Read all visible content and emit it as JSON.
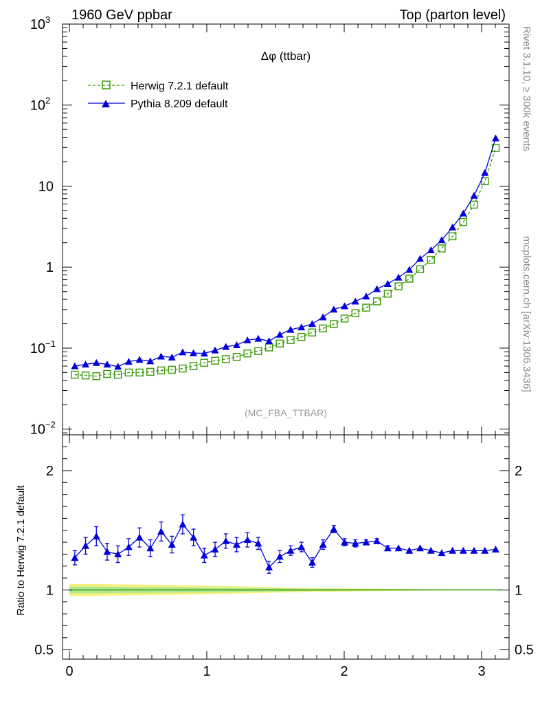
{
  "header": {
    "left": "1960 GeV ppbar",
    "right": "Top (parton level)"
  },
  "side": {
    "rivet": "Rivet 3.1.10, ≥ 300k events",
    "mcplots": "mcplots.cern.ch [arXiv:1306.3436]"
  },
  "chart_data": [
    {
      "type": "line",
      "title": "Δφ (ttbar)",
      "annotation": "(MC_FBA_TTBAR)",
      "yscale": "log",
      "xlim": [
        -0.05,
        3.2
      ],
      "ylim": [
        0.0085,
        1000
      ],
      "ytick_labels": [
        {
          "value": 1000,
          "base": "10",
          "exp": "3"
        },
        {
          "value": 100,
          "base": "10",
          "exp": "2"
        },
        {
          "value": 10,
          "base": "10",
          "exp": ""
        },
        {
          "value": 1,
          "base": "1",
          "exp": ""
        },
        {
          "value": 0.1,
          "base": "10",
          "exp": "−1"
        },
        {
          "value": 0.01,
          "base": "10",
          "exp": "−2"
        }
      ],
      "legend_position": "top-left",
      "x": [
        0.0393,
        0.1178,
        0.1963,
        0.2749,
        0.3534,
        0.432,
        0.5105,
        0.589,
        0.6676,
        0.7461,
        0.8247,
        0.9032,
        0.9817,
        1.0603,
        1.1388,
        1.2174,
        1.2959,
        1.3744,
        1.453,
        1.5315,
        1.6101,
        1.6886,
        1.7671,
        1.8457,
        1.9242,
        2.0028,
        2.0813,
        2.1598,
        2.2384,
        2.3169,
        2.3955,
        2.474,
        2.5525,
        2.6311,
        2.7096,
        2.7882,
        2.8667,
        2.9452,
        3.0238,
        3.1023
      ],
      "series": [
        {
          "name": "Herwig 7.2.1 default",
          "color": "#339900",
          "marker": "open-square",
          "linestyle": "dashed",
          "values": [
            0.047,
            0.046,
            0.045,
            0.048,
            0.047,
            0.05,
            0.05,
            0.051,
            0.053,
            0.054,
            0.056,
            0.06,
            0.066,
            0.07,
            0.073,
            0.078,
            0.086,
            0.092,
            0.102,
            0.114,
            0.126,
            0.137,
            0.156,
            0.175,
            0.198,
            0.232,
            0.27,
            0.316,
            0.378,
            0.47,
            0.58,
            0.72,
            0.94,
            1.23,
            1.7,
            2.4,
            3.6,
            5.9,
            11.5,
            29.5
          ]
        },
        {
          "name": "Pythia 8.209 default",
          "color": "#0000dd",
          "marker": "filled-triangle",
          "linestyle": "solid",
          "values": [
            0.06,
            0.063,
            0.066,
            0.063,
            0.059,
            0.068,
            0.072,
            0.069,
            0.079,
            0.077,
            0.089,
            0.087,
            0.086,
            0.094,
            0.104,
            0.109,
            0.125,
            0.131,
            0.122,
            0.147,
            0.169,
            0.181,
            0.199,
            0.241,
            0.3,
            0.33,
            0.378,
            0.435,
            0.537,
            0.622,
            0.745,
            0.928,
            1.27,
            1.62,
            2.16,
            3.1,
            4.61,
            7.63,
            14.6,
            39.0
          ]
        }
      ]
    },
    {
      "type": "line",
      "ylabel": "Ratio to Herwig 7.2.1 default",
      "xlim": [
        -0.05,
        3.2
      ],
      "ylim": [
        0.42,
        2.3
      ],
      "yticks": [
        0.5,
        1,
        2
      ],
      "ytick_labels": [
        "0.5",
        "1",
        "2"
      ],
      "xticks": [
        0,
        1,
        2,
        3
      ],
      "xtick_labels": [
        "0",
        "1",
        "2",
        "3"
      ],
      "x": [
        0.0393,
        0.1178,
        0.1963,
        0.2749,
        0.3534,
        0.432,
        0.5105,
        0.589,
        0.6676,
        0.7461,
        0.8247,
        0.9032,
        0.9817,
        1.0603,
        1.1388,
        1.2174,
        1.2959,
        1.3744,
        1.453,
        1.5315,
        1.6101,
        1.6886,
        1.7671,
        1.8457,
        1.9242,
        2.0028,
        2.0813,
        2.1598,
        2.2384,
        2.3169,
        2.3955,
        2.474,
        2.5525,
        2.6311,
        2.7096,
        2.7882,
        2.8667,
        2.9452,
        3.0238,
        3.1023
      ],
      "reference": {
        "name": "Herwig 7.2.1 default",
        "value": 1.0,
        "band_halfwidth": [
          0.05,
          0.05,
          0.049,
          0.048,
          0.047,
          0.046,
          0.045,
          0.044,
          0.043,
          0.042,
          0.04,
          0.038,
          0.036,
          0.034,
          0.032,
          0.03,
          0.028,
          0.026,
          0.024,
          0.022,
          0.02,
          0.018,
          0.016,
          0.015,
          0.014,
          0.013,
          0.012,
          0.011,
          0.01,
          0.009,
          0.008,
          0.007,
          0.006,
          0.005,
          0.005,
          0.004,
          0.004,
          0.003,
          0.003,
          0.002
        ]
      },
      "series": [
        {
          "name": "Pythia 8.209 default",
          "color": "#0000dd",
          "values": [
            1.27,
            1.37,
            1.45,
            1.32,
            1.3,
            1.36,
            1.44,
            1.35,
            1.49,
            1.38,
            1.55,
            1.44,
            1.29,
            1.34,
            1.41,
            1.38,
            1.42,
            1.39,
            1.19,
            1.28,
            1.33,
            1.36,
            1.23,
            1.38,
            1.51,
            1.4,
            1.39,
            1.4,
            1.41,
            1.35,
            1.35,
            1.33,
            1.35,
            1.33,
            1.31,
            1.33,
            1.33,
            1.33,
            1.33,
            1.34
          ],
          "errors": [
            0.06,
            0.07,
            0.08,
            0.07,
            0.07,
            0.07,
            0.08,
            0.07,
            0.08,
            0.07,
            0.08,
            0.07,
            0.06,
            0.06,
            0.06,
            0.06,
            0.06,
            0.05,
            0.05,
            0.05,
            0.04,
            0.04,
            0.04,
            0.04,
            0.03,
            0.03,
            0.03,
            0.02,
            0.02,
            0.02,
            0.01,
            0.01,
            0.01,
            0.01,
            0.01,
            0.01,
            0.01,
            0.01,
            0.01,
            0.01
          ]
        }
      ]
    }
  ]
}
